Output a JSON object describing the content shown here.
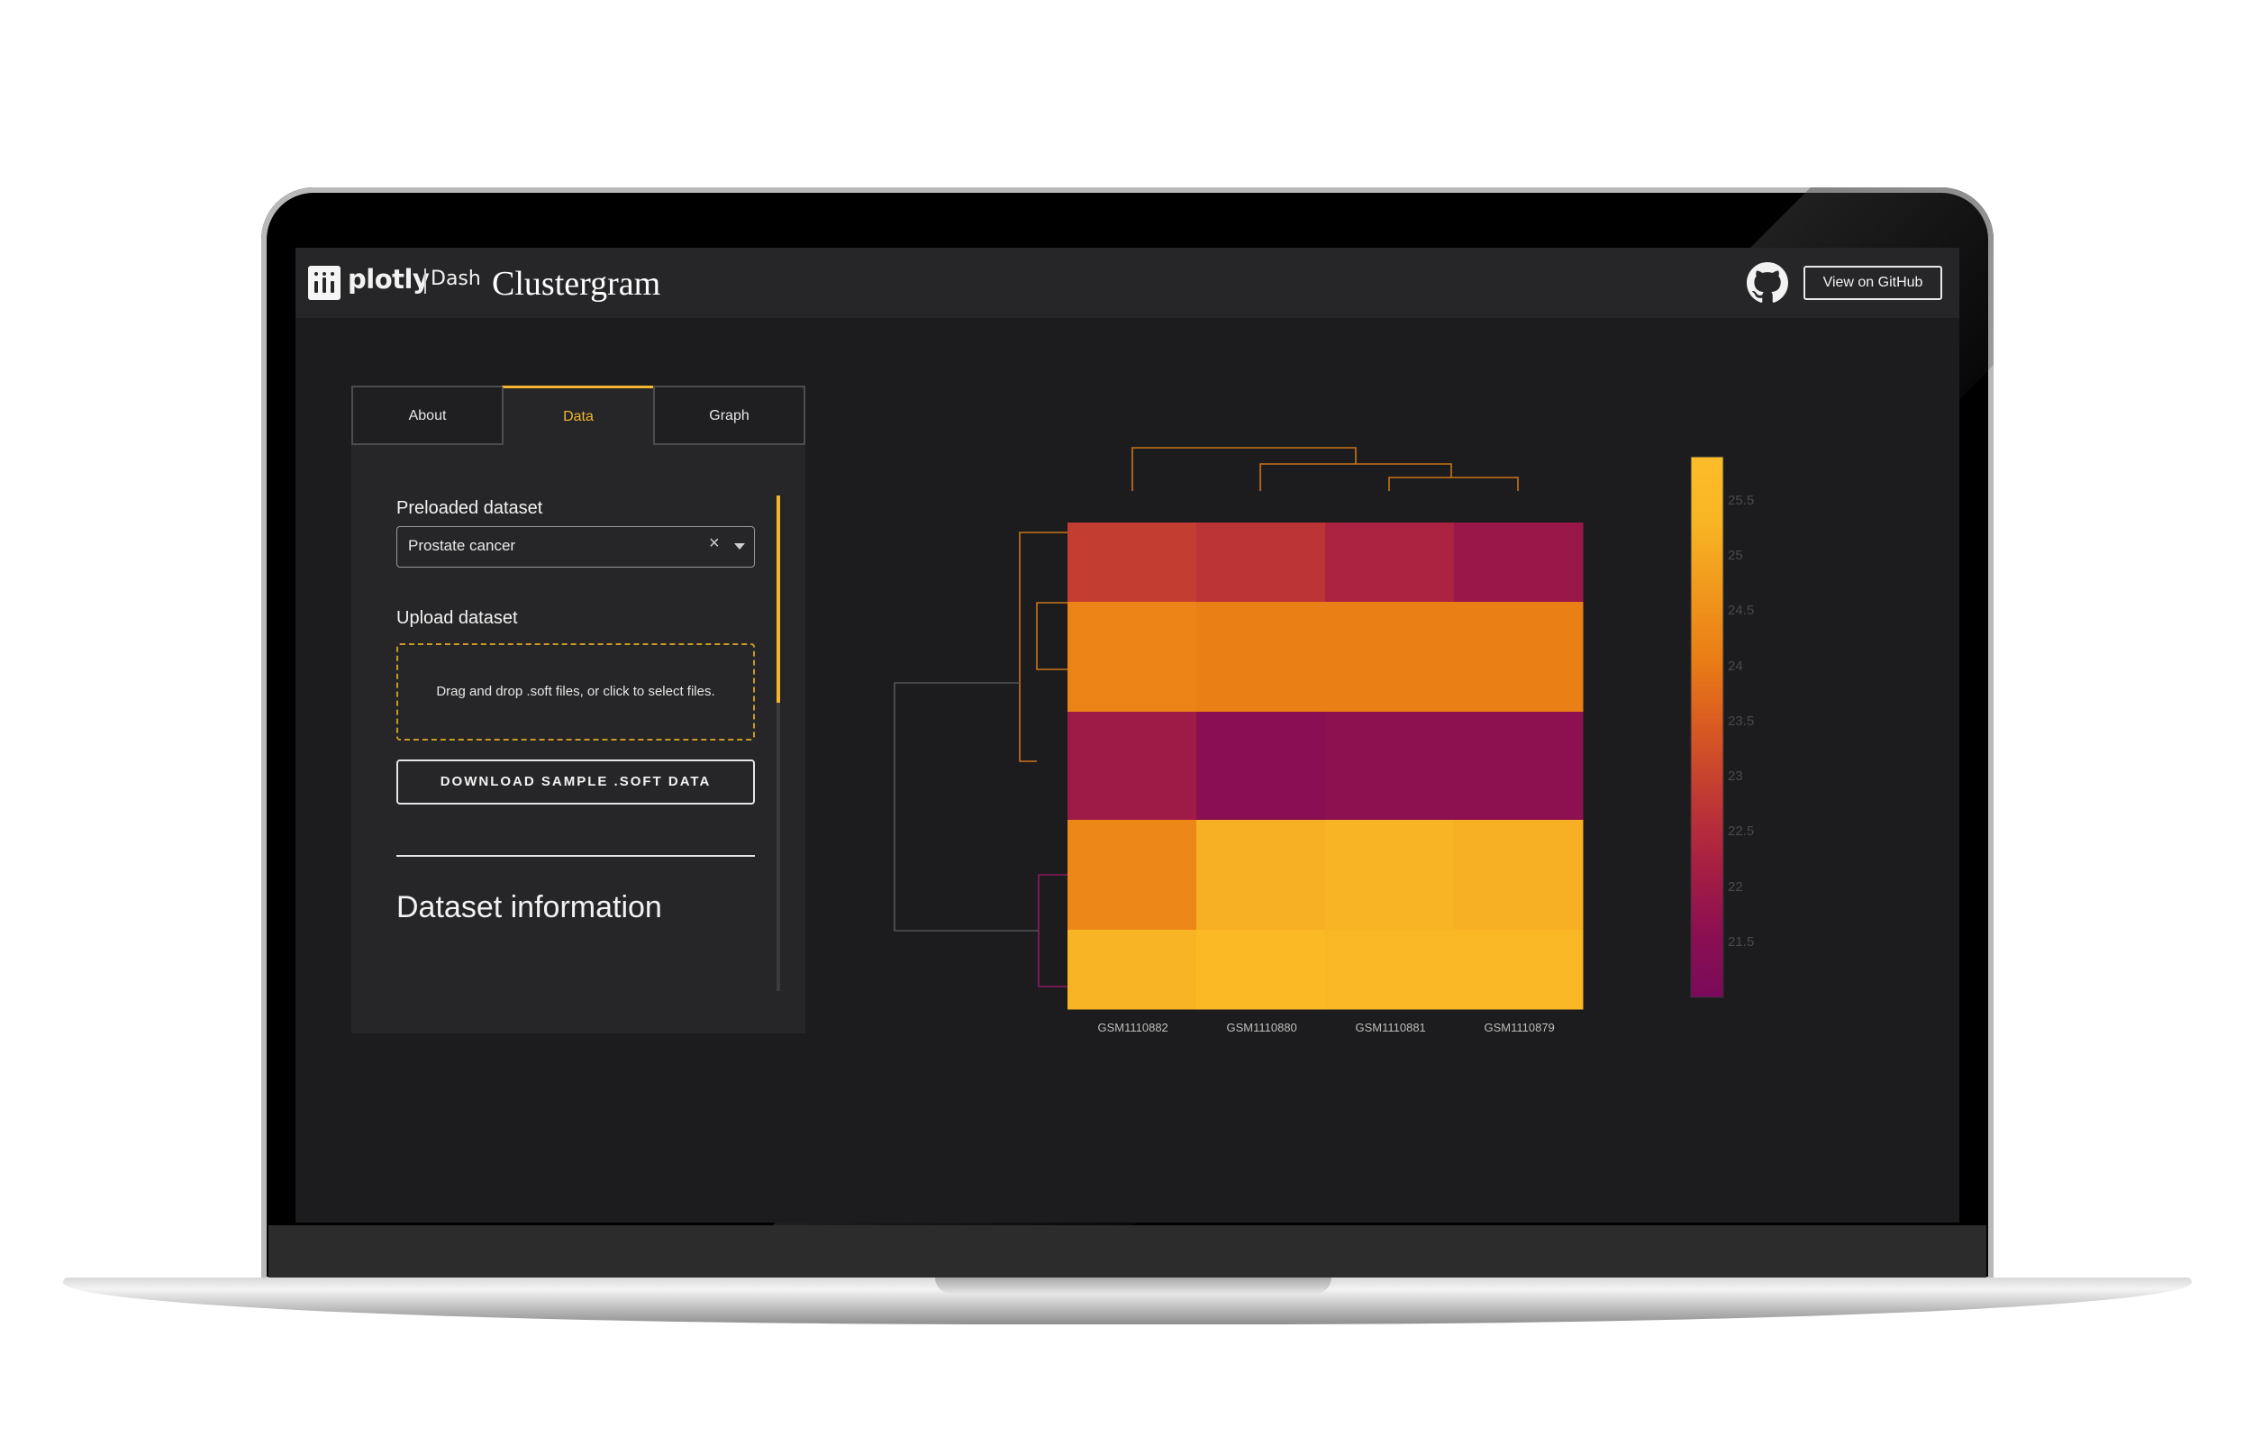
{
  "header": {
    "logo_text": "plotly",
    "logo_sub": "Dash",
    "title": "Clustergram",
    "github_label": "View on GitHub"
  },
  "tabs": [
    {
      "label": "About",
      "active": false
    },
    {
      "label": "Data",
      "active": true
    },
    {
      "label": "Graph",
      "active": false
    }
  ],
  "panel": {
    "preloaded_label": "Preloaded dataset",
    "preloaded_value": "Prostate cancer",
    "clear_glyph": "×",
    "upload_label": "Upload dataset",
    "upload_text": "Drag and drop .soft files, or click to select files.",
    "download_label": "DOWNLOAD SAMPLE .SOFT DATA",
    "info_heading": "Dataset information"
  },
  "colors": {
    "accent": "#f2b52d",
    "scale": [
      "#7a0a5c",
      "#8d1050",
      "#a82042",
      "#c23a33",
      "#d85a22",
      "#ea7d16",
      "#f0981c",
      "#f8b424",
      "#fdbd28"
    ]
  },
  "chart_data": {
    "type": "heatmap",
    "columns": [
      "GSM1110882",
      "GSM1110880",
      "GSM1110881",
      "GSM1110879"
    ],
    "values": [
      [
        22.9,
        22.7,
        22.3,
        21.9
      ],
      [
        24.2,
        24.1,
        24.1,
        24.1
      ],
      [
        22.0,
        21.5,
        21.6,
        21.6
      ],
      [
        24.3,
        25.2,
        25.3,
        25.2
      ],
      [
        25.3,
        25.6,
        25.5,
        25.4
      ]
    ],
    "colorbar": {
      "min": 21.0,
      "max": 25.9,
      "ticks": [
        "25.5",
        "25",
        "24.5",
        "24",
        "23.5",
        "23",
        "22.5",
        "22",
        "21.5"
      ]
    }
  }
}
